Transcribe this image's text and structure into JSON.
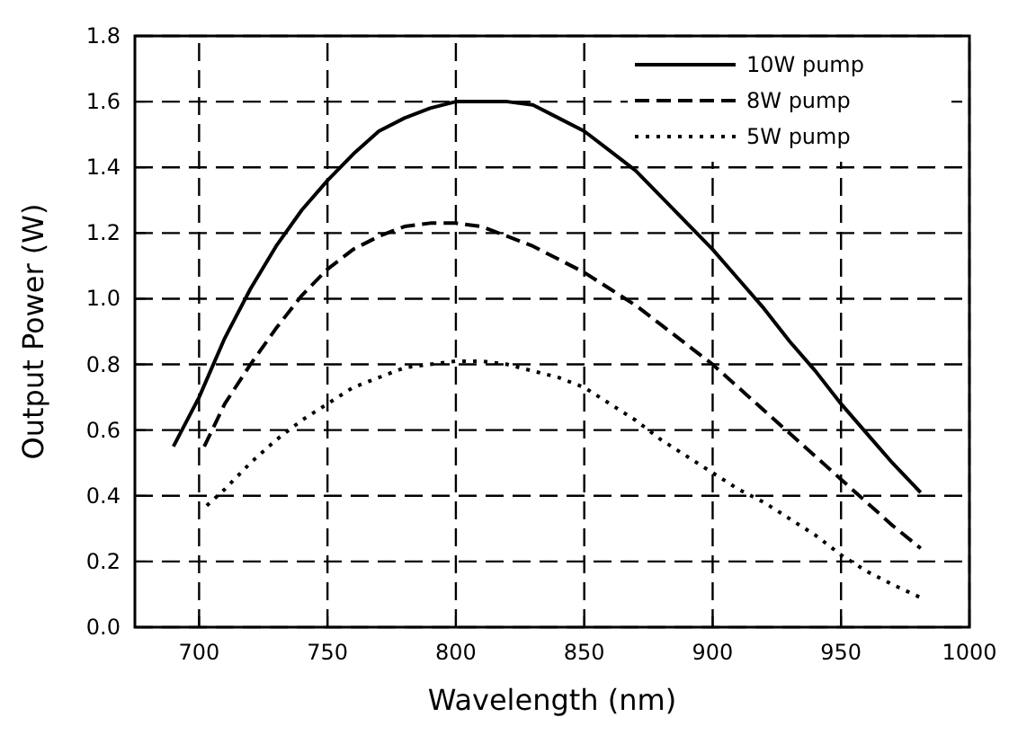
{
  "chart_data": {
    "type": "line",
    "xlabel": "Wavelength (nm)",
    "ylabel": "Output Power (W)",
    "xlim": [
      675,
      1000
    ],
    "xticks": [
      700,
      750,
      800,
      850,
      900,
      950,
      1000
    ],
    "ylim": [
      0,
      1.8
    ],
    "yticks": [
      {
        "value": 0,
        "label": "0.0"
      },
      {
        "value": 0.2,
        "label": "0.2"
      },
      {
        "value": 0.4,
        "label": "0.4"
      },
      {
        "value": 0.6,
        "label": "0.6"
      },
      {
        "value": 0.8,
        "label": "0.8"
      },
      {
        "value": 1,
        "label": "1.0"
      },
      {
        "value": 1.2,
        "label": "1.2"
      },
      {
        "value": 1.4,
        "label": "1.4"
      },
      {
        "value": 1.6,
        "label": "1.6"
      },
      {
        "value": 1.8,
        "label": "1.8"
      }
    ],
    "grid": true,
    "legend": "top right",
    "series": [
      {
        "name": "10W pump",
        "color": "#000000",
        "line_style": "solid",
        "x": [
          690,
          700,
          710,
          720,
          730,
          740,
          750,
          760,
          770,
          780,
          790,
          800,
          810,
          820,
          830,
          840,
          850,
          860,
          870,
          880,
          890,
          900,
          910,
          920,
          930,
          940,
          950,
          960,
          970,
          981
        ],
        "values": [
          0.55,
          0.7,
          0.88,
          1.03,
          1.16,
          1.27,
          1.36,
          1.44,
          1.51,
          1.55,
          1.58,
          1.6,
          1.6,
          1.6,
          1.59,
          1.55,
          1.51,
          1.45,
          1.39,
          1.31,
          1.23,
          1.15,
          1.06,
          0.97,
          0.87,
          0.78,
          0.68,
          0.59,
          0.5,
          0.41
        ]
      },
      {
        "name": "8W pump",
        "color": "#000000",
        "line_style": "dashed",
        "x": [
          702,
          710,
          720,
          730,
          740,
          750,
          760,
          770,
          780,
          790,
          800,
          810,
          820,
          830,
          840,
          850,
          860,
          870,
          880,
          890,
          900,
          910,
          920,
          930,
          940,
          950,
          960,
          970,
          981
        ],
        "values": [
          0.55,
          0.68,
          0.8,
          0.91,
          1.01,
          1.09,
          1.15,
          1.19,
          1.22,
          1.23,
          1.23,
          1.22,
          1.19,
          1.16,
          1.12,
          1.08,
          1.03,
          0.98,
          0.92,
          0.86,
          0.8,
          0.73,
          0.66,
          0.59,
          0.52,
          0.45,
          0.38,
          0.31,
          0.24
        ]
      },
      {
        "name": "5W pump",
        "color": "#000000",
        "line_style": "dotted",
        "x": [
          703,
          710,
          720,
          730,
          740,
          750,
          760,
          770,
          780,
          790,
          800,
          810,
          820,
          830,
          840,
          850,
          860,
          870,
          880,
          890,
          900,
          910,
          920,
          930,
          940,
          950,
          960,
          970,
          981
        ],
        "values": [
          0.37,
          0.42,
          0.5,
          0.57,
          0.63,
          0.68,
          0.73,
          0.76,
          0.79,
          0.8,
          0.81,
          0.81,
          0.8,
          0.78,
          0.76,
          0.73,
          0.68,
          0.63,
          0.57,
          0.52,
          0.47,
          0.42,
          0.38,
          0.33,
          0.28,
          0.22,
          0.17,
          0.13,
          0.09
        ]
      }
    ]
  }
}
